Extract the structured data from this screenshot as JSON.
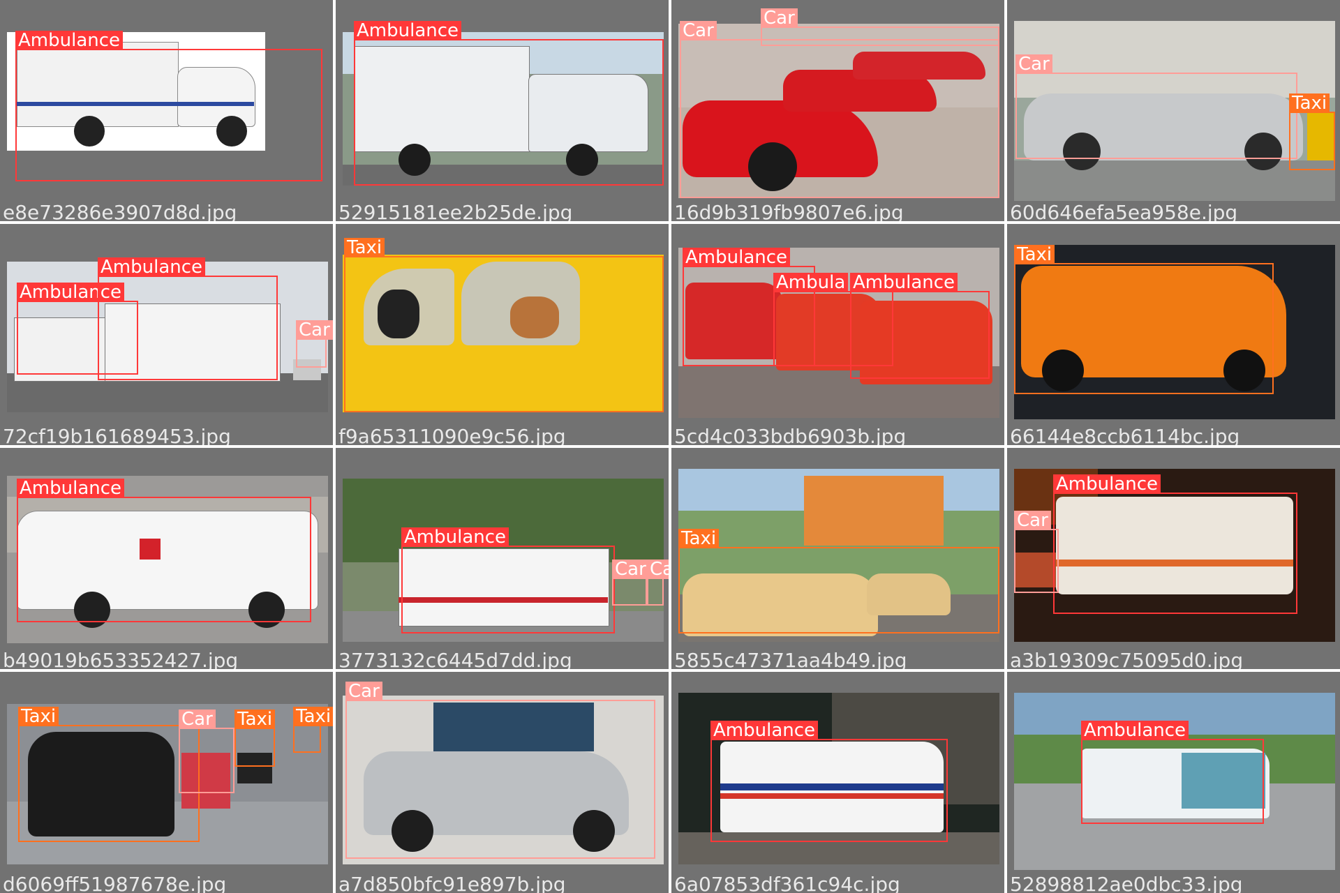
{
  "colors": {
    "Ambulance": "#ff3838",
    "Car": "#ff9d97",
    "Taxi": "#ff701f",
    "tile_background": "#727272",
    "filename_text": "#e9e9e9"
  },
  "tiles": [
    {
      "filename": "e8e73286e3907d8d.jpg",
      "labels": [
        "Ambulance"
      ]
    },
    {
      "filename": "52915181ee2b25de.jpg",
      "labels": [
        "Ambulance"
      ]
    },
    {
      "filename": "16d9b319fb9807e6.jpg",
      "labels": [
        "Car",
        "Car"
      ]
    },
    {
      "filename": "60d646efa5ea958e.jpg",
      "labels": [
        "Car",
        "Taxi"
      ]
    },
    {
      "filename": "72cf19b161689453.jpg",
      "labels": [
        "Ambulance",
        "Ambulance",
        "Car"
      ]
    },
    {
      "filename": "f9a65311090e9c56.jpg",
      "labels": [
        "Taxi"
      ]
    },
    {
      "filename": "5cd4c033bdb6903b.jpg",
      "labels": [
        "Ambulance",
        "Ambula",
        "Ambulance"
      ]
    },
    {
      "filename": "66144e8ccb6114bc.jpg",
      "labels": [
        "Taxi"
      ]
    },
    {
      "filename": "b49019b653352427.jpg",
      "labels": [
        "Ambulance"
      ]
    },
    {
      "filename": "3773132c6445d7dd.jpg",
      "labels": [
        "Ambulance",
        "Car",
        "Car"
      ]
    },
    {
      "filename": "5855c47371aa4b49.jpg",
      "labels": [
        "Taxi"
      ]
    },
    {
      "filename": "a3b19309c75095d0.jpg",
      "labels": [
        "Ambulance",
        "Car"
      ]
    },
    {
      "filename": "d6069ff51987678e.jpg",
      "labels": [
        "Taxi",
        "Car",
        "Taxi",
        "Taxi"
      ]
    },
    {
      "filename": "a7d850bfc91e897b.jpg",
      "labels": [
        "Car"
      ]
    },
    {
      "filename": "6a07853df361c94c.jpg",
      "labels": [
        "Ambulance"
      ]
    },
    {
      "filename": "52898812ae0dbc33.jpg",
      "labels": [
        "Ambulance"
      ]
    }
  ]
}
